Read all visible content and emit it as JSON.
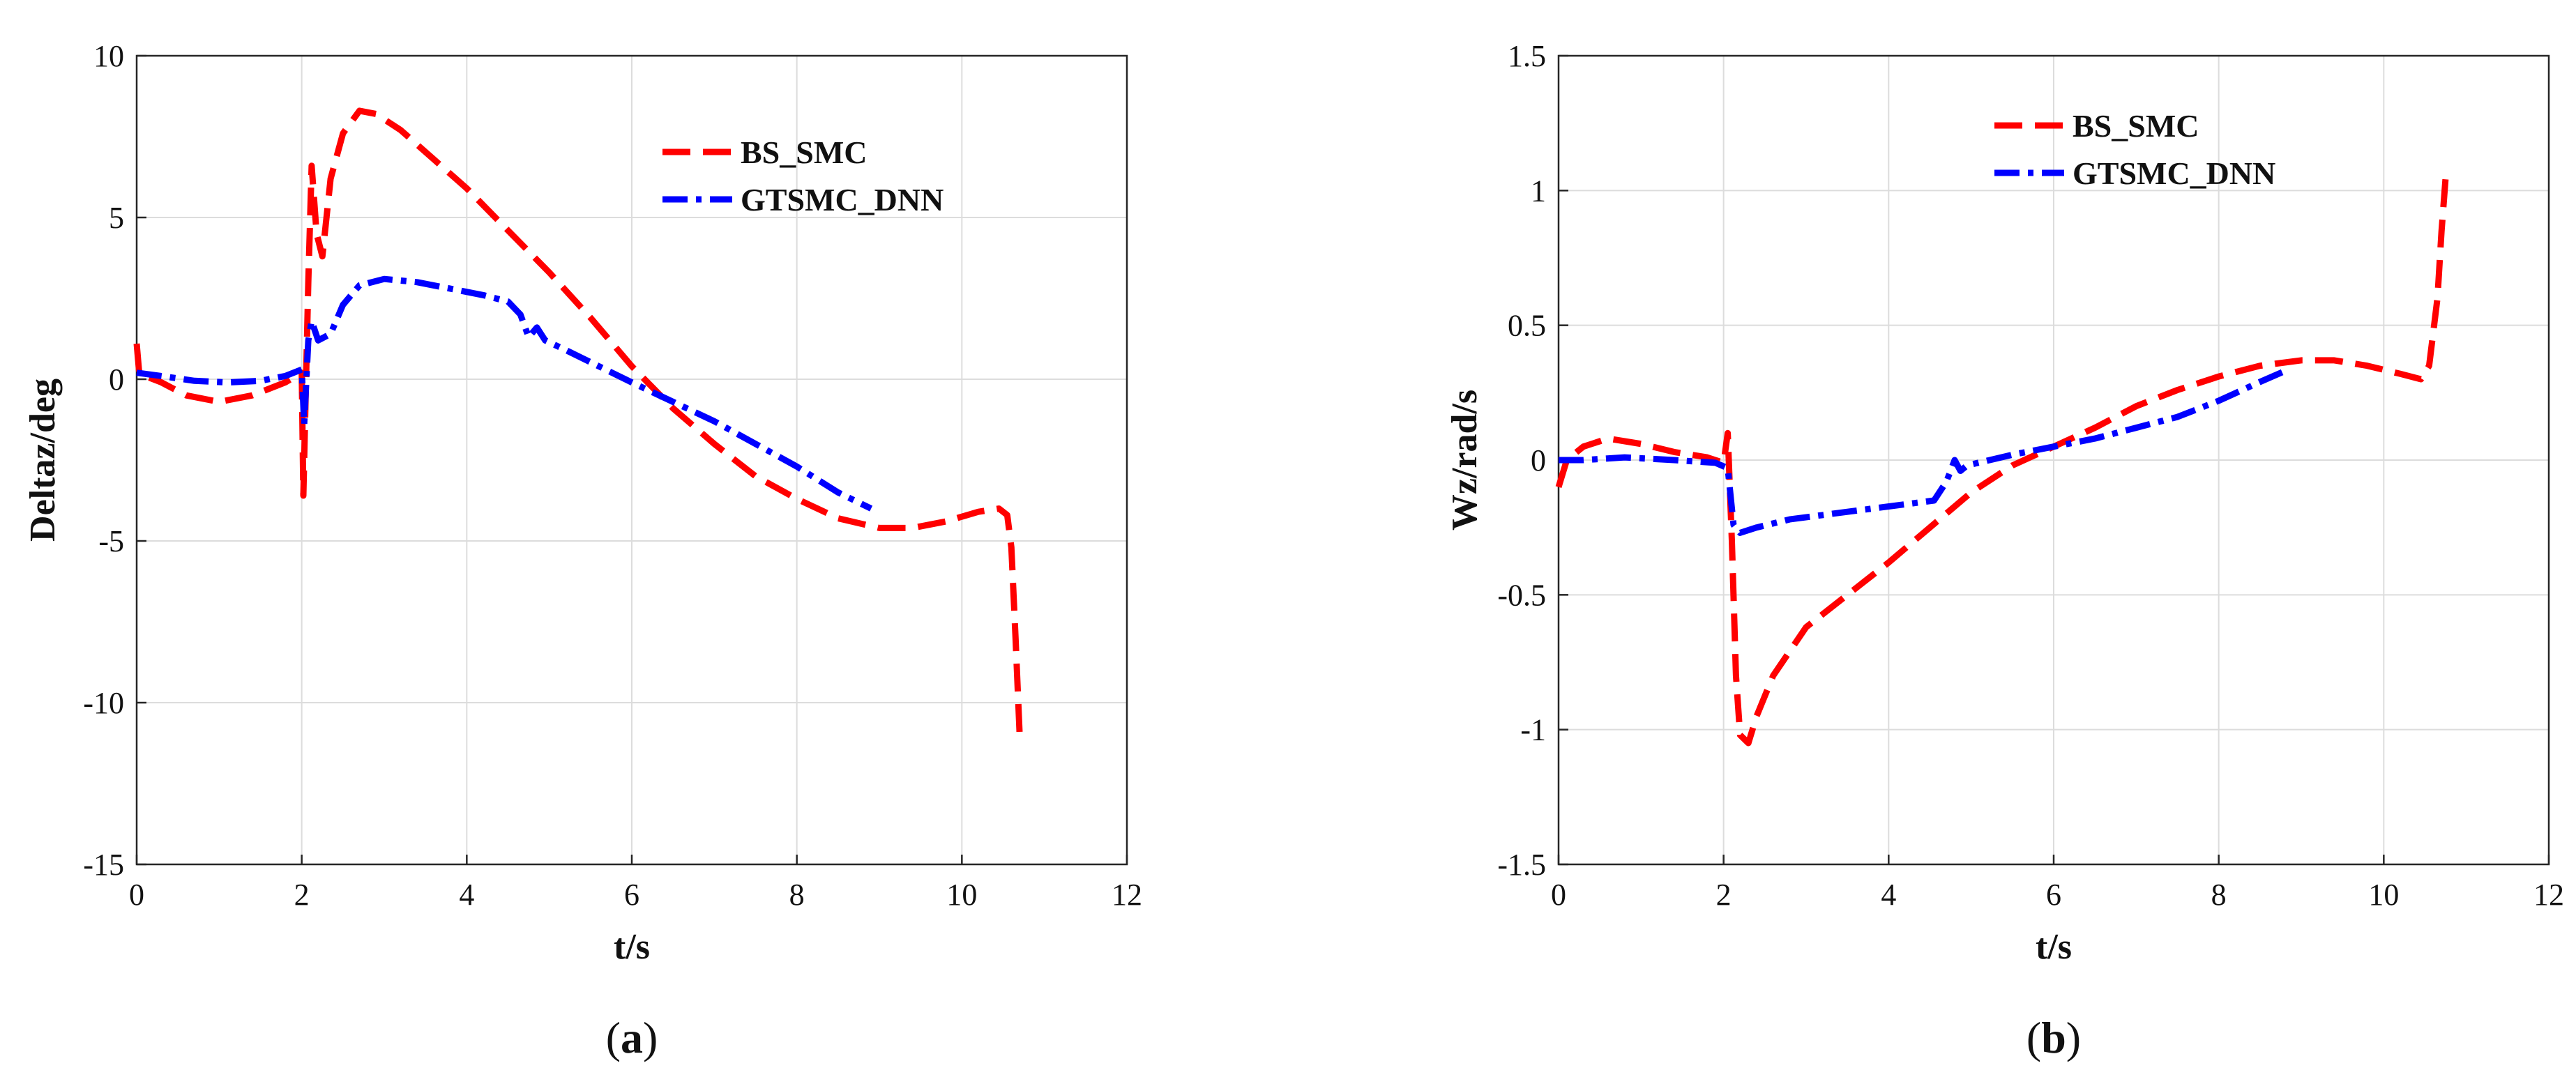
{
  "chart_data": [
    {
      "type": "line",
      "caption": "(a)",
      "caption_letter": "a",
      "xlabel": "t/s",
      "ylabel": "Deltaz/deg",
      "xlim": [
        0,
        12
      ],
      "ylim": [
        -15,
        10
      ],
      "xticks": [
        0,
        2,
        4,
        6,
        8,
        10,
        12
      ],
      "yticks": [
        -15,
        -10,
        -5,
        0,
        5,
        10
      ],
      "xtick_labels": [
        "0",
        "2",
        "4",
        "6",
        "8",
        "10",
        "12"
      ],
      "ytick_labels": [
        "-15",
        "-10",
        "-5",
        "0",
        "5",
        "10"
      ],
      "grid": true,
      "legend_position": "top-right",
      "series": [
        {
          "name": "BS_SMC",
          "color": "#ff0000",
          "style": "dashed",
          "points": [
            [
              0.0,
              1.1
            ],
            [
              0.03,
              0.2
            ],
            [
              0.1,
              0.1
            ],
            [
              0.3,
              -0.1
            ],
            [
              0.6,
              -0.5
            ],
            [
              1.0,
              -0.7
            ],
            [
              1.4,
              -0.5
            ],
            [
              1.8,
              -0.1
            ],
            [
              2.0,
              0.2
            ],
            [
              2.02,
              -3.6
            ],
            [
              2.08,
              3.0
            ],
            [
              2.12,
              6.6
            ],
            [
              2.18,
              4.5
            ],
            [
              2.25,
              3.8
            ],
            [
              2.35,
              6.2
            ],
            [
              2.5,
              7.6
            ],
            [
              2.7,
              8.3
            ],
            [
              2.9,
              8.2
            ],
            [
              3.2,
              7.7
            ],
            [
              3.6,
              6.8
            ],
            [
              4.0,
              5.9
            ],
            [
              4.5,
              4.6
            ],
            [
              5.0,
              3.3
            ],
            [
              5.5,
              1.9
            ],
            [
              6.0,
              0.4
            ],
            [
              6.5,
              -0.9
            ],
            [
              7.0,
              -2.0
            ],
            [
              7.5,
              -3.0
            ],
            [
              8.0,
              -3.7
            ],
            [
              8.5,
              -4.3
            ],
            [
              9.0,
              -4.6
            ],
            [
              9.4,
              -4.6
            ],
            [
              9.8,
              -4.4
            ],
            [
              10.2,
              -4.1
            ],
            [
              10.45,
              -4.0
            ],
            [
              10.55,
              -4.2
            ],
            [
              10.6,
              -5.2
            ],
            [
              10.65,
              -8.0
            ],
            [
              10.7,
              -11.0
            ]
          ]
        },
        {
          "name": "GTSMC_DNN",
          "color": "#0000ff",
          "style": "dashdot",
          "points": [
            [
              0.0,
              0.2
            ],
            [
              0.3,
              0.1
            ],
            [
              0.7,
              -0.05
            ],
            [
              1.1,
              -0.1
            ],
            [
              1.5,
              -0.05
            ],
            [
              1.8,
              0.1
            ],
            [
              2.0,
              0.3
            ],
            [
              2.03,
              -1.4
            ],
            [
              2.08,
              1.2
            ],
            [
              2.12,
              1.8
            ],
            [
              2.2,
              1.2
            ],
            [
              2.35,
              1.4
            ],
            [
              2.5,
              2.3
            ],
            [
              2.7,
              2.9
            ],
            [
              3.0,
              3.1
            ],
            [
              3.4,
              3.0
            ],
            [
              3.8,
              2.8
            ],
            [
              4.2,
              2.6
            ],
            [
              4.5,
              2.4
            ],
            [
              4.65,
              2.0
            ],
            [
              4.75,
              1.3
            ],
            [
              4.85,
              1.6
            ],
            [
              4.95,
              1.2
            ],
            [
              5.2,
              0.9
            ],
            [
              5.6,
              0.4
            ],
            [
              6.0,
              -0.1
            ],
            [
              6.5,
              -0.7
            ],
            [
              7.0,
              -1.3
            ],
            [
              7.5,
              -2.0
            ],
            [
              8.0,
              -2.7
            ],
            [
              8.5,
              -3.5
            ],
            [
              8.9,
              -4.0
            ]
          ]
        }
      ]
    },
    {
      "type": "line",
      "caption": "(b)",
      "caption_letter": "b",
      "xlabel": "t/s",
      "ylabel": "Wz/rad/s",
      "xlim": [
        0,
        12
      ],
      "ylim": [
        -1.5,
        1.5
      ],
      "xticks": [
        0,
        2,
        4,
        6,
        8,
        10,
        12
      ],
      "yticks": [
        -1.5,
        -1,
        -0.5,
        0,
        0.5,
        1,
        1.5
      ],
      "xtick_labels": [
        "0",
        "2",
        "4",
        "6",
        "8",
        "10",
        "12"
      ],
      "ytick_labels": [
        "-1.5",
        "-1",
        "-0.5",
        "0",
        "0.5",
        "1",
        "1.5"
      ],
      "grid": true,
      "legend_position": "top-right",
      "series": [
        {
          "name": "BS_SMC",
          "color": "#ff0000",
          "style": "dashed",
          "points": [
            [
              0.0,
              -0.1
            ],
            [
              0.1,
              0.0
            ],
            [
              0.3,
              0.05
            ],
            [
              0.6,
              0.08
            ],
            [
              1.0,
              0.06
            ],
            [
              1.4,
              0.03
            ],
            [
              1.8,
              0.01
            ],
            [
              2.0,
              -0.01
            ],
            [
              2.05,
              0.1
            ],
            [
              2.1,
              -0.3
            ],
            [
              2.15,
              -0.8
            ],
            [
              2.2,
              -1.02
            ],
            [
              2.3,
              -1.05
            ],
            [
              2.4,
              -0.95
            ],
            [
              2.6,
              -0.8
            ],
            [
              3.0,
              -0.62
            ],
            [
              3.5,
              -0.5
            ],
            [
              4.0,
              -0.38
            ],
            [
              4.5,
              -0.25
            ],
            [
              5.0,
              -0.12
            ],
            [
              5.5,
              -0.02
            ],
            [
              6.0,
              0.05
            ],
            [
              6.5,
              0.12
            ],
            [
              7.0,
              0.2
            ],
            [
              7.5,
              0.26
            ],
            [
              8.0,
              0.31
            ],
            [
              8.5,
              0.35
            ],
            [
              9.0,
              0.37
            ],
            [
              9.4,
              0.37
            ],
            [
              9.8,
              0.35
            ],
            [
              10.2,
              0.32
            ],
            [
              10.45,
              0.3
            ],
            [
              10.55,
              0.35
            ],
            [
              10.65,
              0.6
            ],
            [
              10.7,
              0.85
            ],
            [
              10.75,
              1.05
            ]
          ]
        },
        {
          "name": "GTSMC_DNN",
          "color": "#0000ff",
          "style": "dashdot",
          "points": [
            [
              0.0,
              0.0
            ],
            [
              0.3,
              0.0
            ],
            [
              0.8,
              0.01
            ],
            [
              1.4,
              0.0
            ],
            [
              1.9,
              -0.01
            ],
            [
              2.05,
              -0.03
            ],
            [
              2.12,
              -0.24
            ],
            [
              2.2,
              -0.27
            ],
            [
              2.4,
              -0.25
            ],
            [
              2.8,
              -0.22
            ],
            [
              3.3,
              -0.2
            ],
            [
              3.8,
              -0.18
            ],
            [
              4.3,
              -0.16
            ],
            [
              4.55,
              -0.15
            ],
            [
              4.7,
              -0.08
            ],
            [
              4.8,
              0.0
            ],
            [
              4.87,
              -0.04
            ],
            [
              4.95,
              -0.02
            ],
            [
              5.5,
              0.02
            ],
            [
              6.0,
              0.05
            ],
            [
              6.5,
              0.08
            ],
            [
              7.0,
              0.12
            ],
            [
              7.5,
              0.16
            ],
            [
              8.0,
              0.22
            ],
            [
              8.5,
              0.29
            ],
            [
              8.8,
              0.33
            ]
          ]
        }
      ]
    }
  ]
}
